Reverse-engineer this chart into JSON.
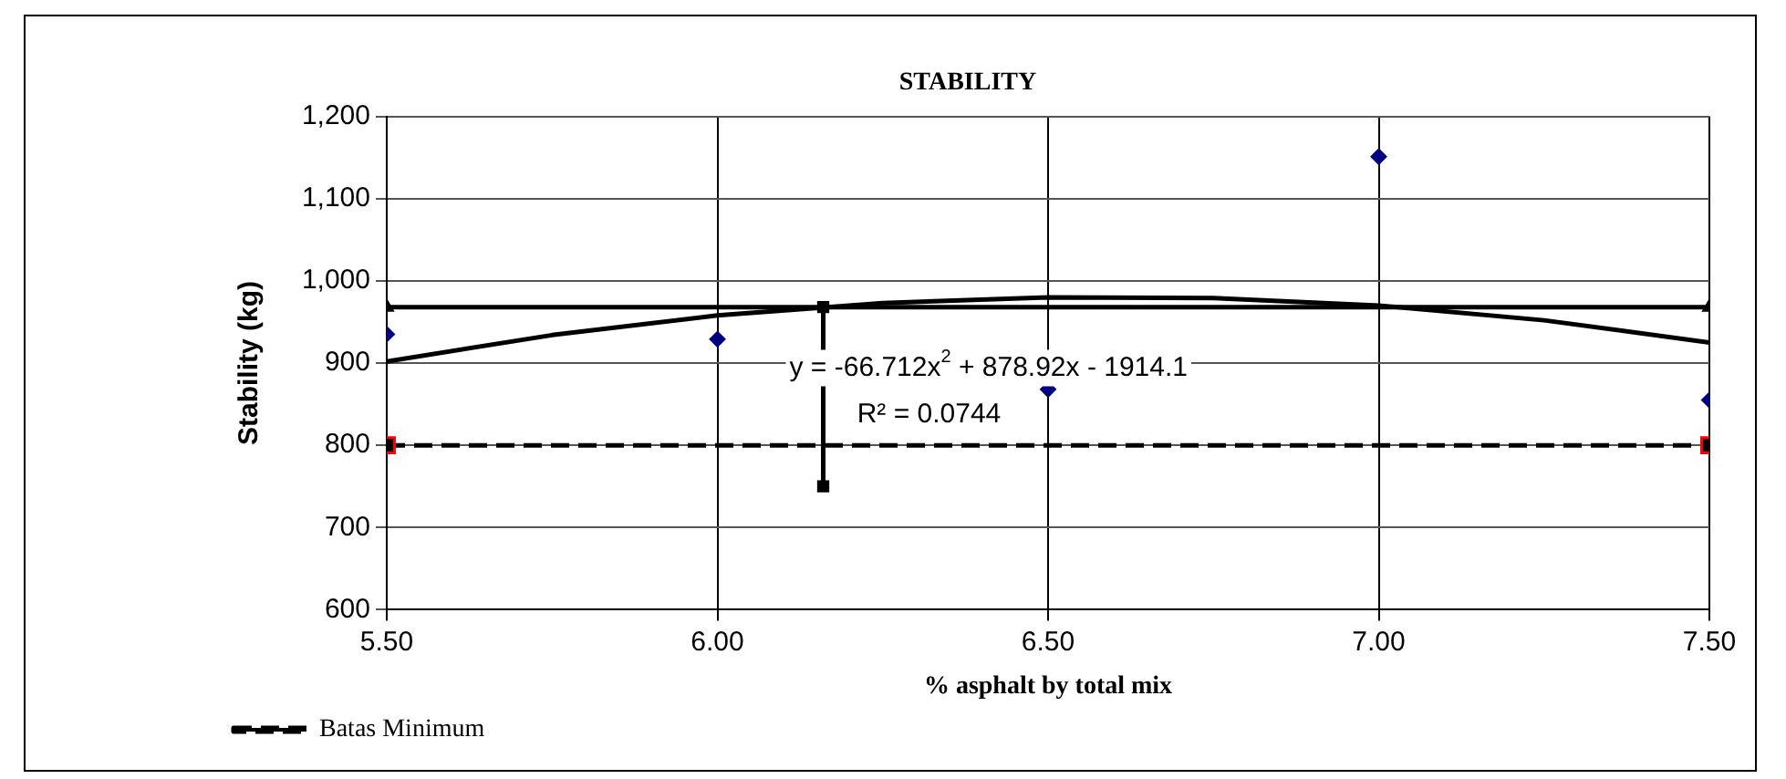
{
  "chart_data": {
    "type": "scatter",
    "title": "STABILITY",
    "xlabel": "% asphalt by total mix",
    "ylabel": "Stability (kg)",
    "xlim": [
      5.5,
      7.5
    ],
    "xticks": [
      {
        "value": 5.5,
        "label": "5.50"
      },
      {
        "value": 6,
        "label": "6.00"
      },
      {
        "value": 6.5,
        "label": "6.50"
      },
      {
        "value": 7,
        "label": "7.00"
      },
      {
        "value": 7.5,
        "label": "7.50"
      }
    ],
    "ylim": [
      600,
      1200
    ],
    "yticks": [
      600,
      700,
      800,
      900,
      {
        "value": 1000,
        "label": "1,000"
      },
      {
        "value": 1100,
        "label": "1,100"
      },
      {
        "value": 1200,
        "label": "1,200"
      }
    ],
    "grid": true,
    "legend": "bottom left",
    "series": [
      {
        "color": "#000080",
        "marker": "diamond",
        "x": [
          5.5,
          6,
          6.5,
          7,
          7.5
        ],
        "values": [
          935,
          929,
          868,
          1151,
          855
        ]
      },
      {
        "type": "line",
        "color": "#000000",
        "marker": "none",
        "line_style": "solid",
        "x": [
          5.5,
          5.75,
          6,
          6.25,
          6.5,
          6.75,
          7,
          7.25,
          7.5
        ],
        "values": [
          902,
          934,
          958,
          973,
          980,
          979,
          970,
          952,
          925
        ]
      },
      {
        "type": "line",
        "color": "#000000",
        "marker": "triangle",
        "line_style": "solid",
        "x": [
          5.5,
          7.5
        ],
        "values": [
          968,
          968
        ]
      },
      {
        "type": "line",
        "color": "#000000",
        "marker": "square",
        "line_style": "solid",
        "x": [
          6.16,
          6.16
        ],
        "values": [
          968,
          750
        ]
      },
      {
        "type": "line",
        "name": "Batas Minimum",
        "color": "#000000",
        "marker": "square",
        "line_style": "dashed",
        "x": [
          5.5,
          7.5
        ],
        "values": [
          800,
          800
        ]
      }
    ],
    "annotations": [
      "y = -66.712x$^{2}$ + 878.92x - 1914.1",
      "R² = 0.0744"
    ]
  }
}
